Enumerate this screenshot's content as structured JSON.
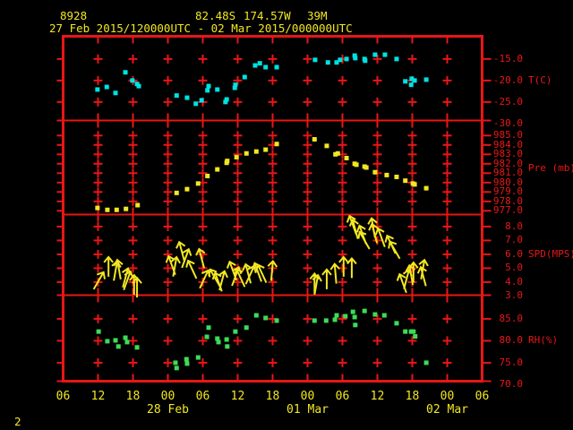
{
  "header": {
    "station_id": "8928",
    "latitude": "82.48S",
    "longitude": "174.57W",
    "elevation": "39M",
    "time_range": "27 Feb 2015/120000UTC - 02 Mar 2015/000000UTC"
  },
  "footer": {
    "page_number": "2"
  },
  "colors": {
    "background": "#000000",
    "grid_red": "#e81616",
    "data_yellow": "#f2e722",
    "temp_cyan": "#00e2e2",
    "rh_green": "#3cdc55"
  },
  "x_axis": {
    "hours_per_division": 6,
    "hour_labels": [
      "06",
      "12",
      "18",
      "00",
      "06",
      "12",
      "18",
      "00",
      "06",
      "12",
      "18",
      "00",
      "06"
    ],
    "date_labels": [
      {
        "text": "28 Feb",
        "hour": 18
      },
      {
        "text": "01 Mar",
        "hour": 42
      },
      {
        "text": "02 Mar",
        "hour": 66
      }
    ]
  },
  "chart_data": [
    {
      "type": "scatter",
      "name": "temperature",
      "ylabel": "T(C)",
      "marker": "square",
      "color": "#00e2e2",
      "yticks": [
        -15,
        -20,
        -25,
        -30
      ],
      "x_unit": "hours from 27 Feb 06UTC",
      "points": [
        [
          5.9,
          -22.1
        ],
        [
          7.5,
          -21.5
        ],
        [
          9.0,
          -22.9
        ],
        [
          10.7,
          -18.1
        ],
        [
          11.9,
          -20.0
        ],
        [
          12.7,
          -20.8
        ],
        [
          13.0,
          -21.3
        ],
        [
          19.5,
          -23.5
        ],
        [
          21.3,
          -24.0
        ],
        [
          22.8,
          -25.4
        ],
        [
          23.8,
          -24.6
        ],
        [
          24.8,
          -22.3
        ],
        [
          25.0,
          -21.3
        ],
        [
          26.5,
          -22.1
        ],
        [
          27.9,
          -25.0
        ],
        [
          28.1,
          -24.4
        ],
        [
          29.5,
          -21.7
        ],
        [
          29.6,
          -21.0
        ],
        [
          31.2,
          -19.2
        ],
        [
          33.0,
          -16.5
        ],
        [
          33.8,
          -16.0
        ],
        [
          34.8,
          -16.9
        ],
        [
          36.7,
          -16.9
        ],
        [
          43.3,
          -15.2
        ],
        [
          45.5,
          -15.8
        ],
        [
          47.0,
          -15.8
        ],
        [
          47.6,
          -15.2
        ],
        [
          48.7,
          -15.0
        ],
        [
          50.1,
          -14.2
        ],
        [
          50.2,
          -14.8
        ],
        [
          51.8,
          -15.0
        ],
        [
          51.9,
          -15.4
        ],
        [
          53.6,
          -14.0
        ],
        [
          55.3,
          -14.0
        ],
        [
          57.3,
          -15.0
        ],
        [
          58.8,
          -20.2
        ],
        [
          59.8,
          -21.0
        ],
        [
          59.9,
          -19.6
        ],
        [
          60.4,
          -20.0
        ],
        [
          62.4,
          -19.8
        ]
      ]
    },
    {
      "type": "scatter",
      "name": "pressure",
      "ylabel": "Pre (mb)",
      "marker": "square",
      "color": "#f2e722",
      "yticks": [
        985,
        984,
        983,
        982,
        981,
        980,
        979,
        978,
        977
      ],
      "x_unit": "hours from 27 Feb 06UTC",
      "points": [
        [
          5.9,
          977.3
        ],
        [
          7.6,
          977.1
        ],
        [
          9.2,
          977.1
        ],
        [
          10.8,
          977.2
        ],
        [
          12.8,
          977.6
        ],
        [
          19.5,
          978.9
        ],
        [
          21.3,
          979.3
        ],
        [
          23.2,
          979.9
        ],
        [
          24.8,
          980.7
        ],
        [
          26.5,
          981.4
        ],
        [
          28.1,
          982.1
        ],
        [
          28.2,
          982.3
        ],
        [
          29.8,
          982.7
        ],
        [
          31.5,
          983.1
        ],
        [
          33.2,
          983.3
        ],
        [
          34.8,
          983.5
        ],
        [
          36.7,
          984.1
        ],
        [
          43.2,
          984.6
        ],
        [
          45.3,
          983.9
        ],
        [
          46.8,
          983.0
        ],
        [
          47.2,
          983.1
        ],
        [
          48.7,
          982.6
        ],
        [
          50.1,
          982.0
        ],
        [
          50.4,
          981.9
        ],
        [
          51.8,
          981.7
        ],
        [
          52.1,
          981.6
        ],
        [
          53.6,
          981.1
        ],
        [
          55.6,
          980.8
        ],
        [
          57.3,
          980.6
        ],
        [
          58.8,
          980.2
        ],
        [
          60.1,
          979.9
        ],
        [
          60.4,
          979.8
        ],
        [
          62.4,
          979.4
        ]
      ]
    },
    {
      "type": "scatter",
      "name": "wind_speed",
      "ylabel": "SPD(MPS)",
      "marker": "arrow",
      "color": "#f2e722",
      "yticks": [
        8,
        7,
        6,
        5,
        4,
        3
      ],
      "x_unit": "hours from 27 Feb 06UTC",
      "points_note": "[hour, speed_mps, arrow_rotation_deg]",
      "points": [
        [
          6.1,
          4.1,
          30
        ],
        [
          7.8,
          5.1,
          0
        ],
        [
          9.0,
          4.8,
          10
        ],
        [
          9.6,
          4.9,
          -10
        ],
        [
          10.7,
          4.3,
          15
        ],
        [
          11.0,
          4.1,
          20
        ],
        [
          12.2,
          3.8,
          0
        ],
        [
          12.7,
          3.6,
          0
        ],
        [
          18.7,
          5.2,
          -20
        ],
        [
          19.2,
          5.1,
          10
        ],
        [
          20.4,
          6.2,
          -15
        ],
        [
          21.0,
          5.7,
          20
        ],
        [
          22.2,
          4.9,
          -25
        ],
        [
          23.8,
          5.7,
          -15
        ],
        [
          24.2,
          4.2,
          25
        ],
        [
          26.1,
          4.3,
          -30
        ],
        [
          26.7,
          4.0,
          -20
        ],
        [
          27.3,
          4.1,
          15
        ],
        [
          29.2,
          4.8,
          -20
        ],
        [
          29.6,
          4.4,
          20
        ],
        [
          30.5,
          4.3,
          -25
        ],
        [
          31.8,
          4.6,
          -15
        ],
        [
          32.1,
          4.5,
          25
        ],
        [
          33.5,
          4.7,
          -20
        ],
        [
          34.2,
          4.6,
          -25
        ],
        [
          35.9,
          4.8,
          5
        ],
        [
          43.2,
          3.9,
          0
        ],
        [
          43.5,
          3.8,
          10
        ],
        [
          45.3,
          4.2,
          0
        ],
        [
          46.8,
          4.6,
          -5
        ],
        [
          48.2,
          5.1,
          0
        ],
        [
          49.6,
          5.0,
          0
        ],
        [
          49.8,
          8.1,
          -20
        ],
        [
          50.2,
          7.8,
          -15
        ],
        [
          51.5,
          7.4,
          -20
        ],
        [
          51.8,
          7.0,
          -30
        ],
        [
          53.3,
          7.9,
          -10
        ],
        [
          53.5,
          7.5,
          -15
        ],
        [
          54.7,
          7.2,
          -20
        ],
        [
          56.4,
          6.7,
          -25
        ],
        [
          57.0,
          6.3,
          -30
        ],
        [
          58.4,
          3.9,
          -20
        ],
        [
          59.0,
          4.2,
          15
        ],
        [
          59.8,
          4.5,
          -10
        ],
        [
          60.2,
          4.7,
          0
        ],
        [
          61.8,
          4.9,
          10
        ],
        [
          61.9,
          4.4,
          -15
        ]
      ]
    },
    {
      "type": "scatter",
      "name": "relative_humidity",
      "ylabel": "RH(%)",
      "marker": "square",
      "color": "#3cdc55",
      "yticks": [
        85,
        80,
        75,
        70
      ],
      "x_unit": "hours from 27 Feb 06UTC",
      "points": [
        [
          6.1,
          82.1
        ],
        [
          7.6,
          79.9
        ],
        [
          9.0,
          80.1
        ],
        [
          9.5,
          78.7
        ],
        [
          10.7,
          80.7
        ],
        [
          11.0,
          79.7
        ],
        [
          12.7,
          78.5
        ],
        [
          19.3,
          75.0
        ],
        [
          19.5,
          73.8
        ],
        [
          21.2,
          75.8
        ],
        [
          21.3,
          74.8
        ],
        [
          23.2,
          76.2
        ],
        [
          24.7,
          80.9
        ],
        [
          25.0,
          83.0
        ],
        [
          26.5,
          80.5
        ],
        [
          26.7,
          79.7
        ],
        [
          28.1,
          80.3
        ],
        [
          28.2,
          78.7
        ],
        [
          29.6,
          82.1
        ],
        [
          31.5,
          83.0
        ],
        [
          33.2,
          85.8
        ],
        [
          34.8,
          85.2
        ],
        [
          36.7,
          84.6
        ],
        [
          43.2,
          84.6
        ],
        [
          45.2,
          84.6
        ],
        [
          46.7,
          84.8
        ],
        [
          47.0,
          85.8
        ],
        [
          48.5,
          85.6
        ],
        [
          49.8,
          86.6
        ],
        [
          50.1,
          85.4
        ],
        [
          50.2,
          83.6
        ],
        [
          51.8,
          86.8
        ],
        [
          53.6,
          86.0
        ],
        [
          55.2,
          85.8
        ],
        [
          57.3,
          84.0
        ],
        [
          58.8,
          82.1
        ],
        [
          59.8,
          82.1
        ],
        [
          60.2,
          82.1
        ],
        [
          60.5,
          81.0
        ],
        [
          62.4,
          75.0
        ]
      ]
    }
  ]
}
